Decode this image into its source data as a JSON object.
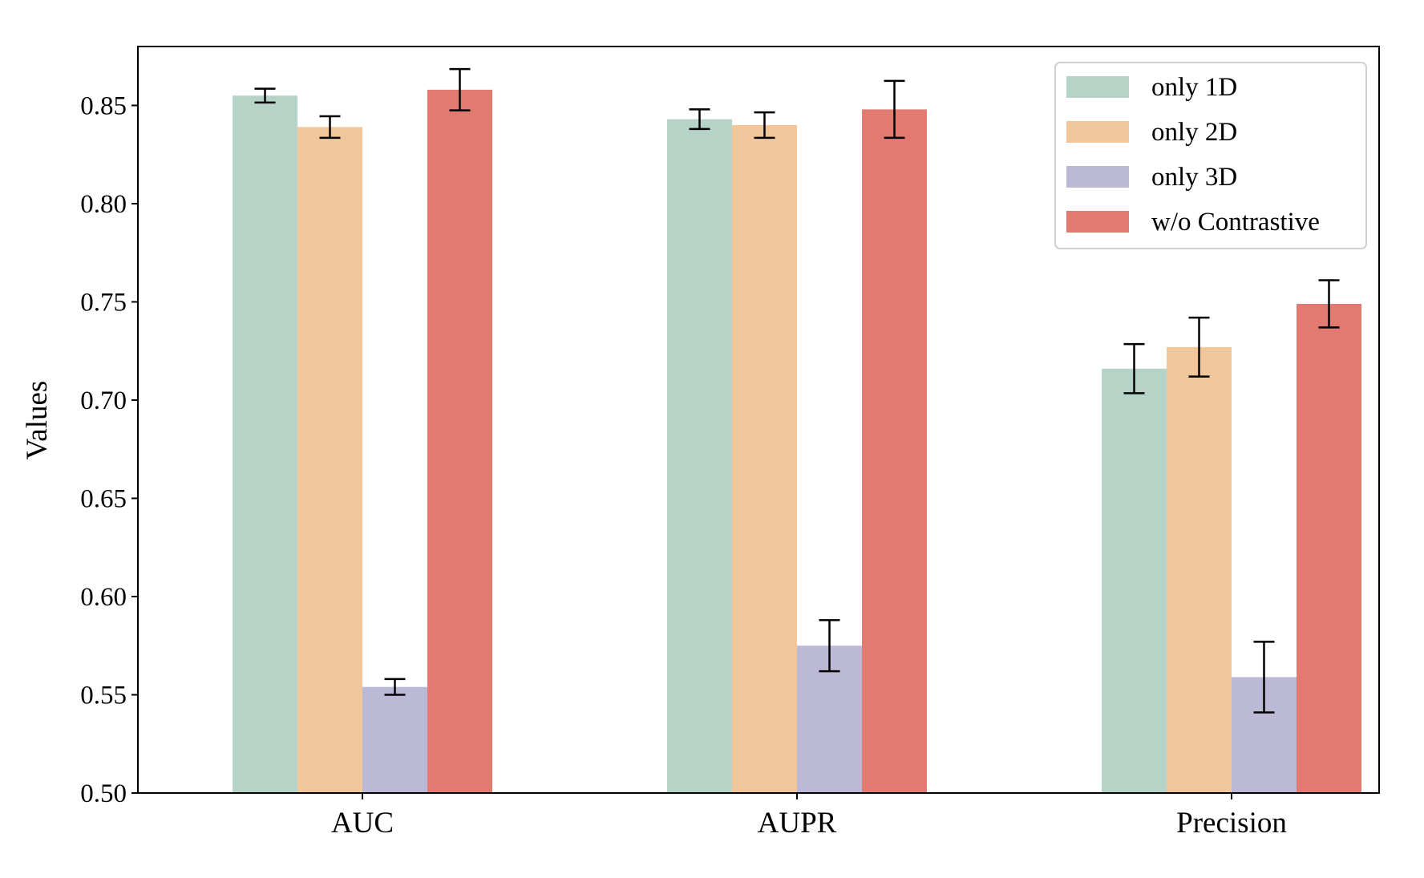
{
  "chart_data": {
    "type": "bar",
    "title": "",
    "xlabel": "",
    "ylabel": "Values",
    "ylim": [
      0.5,
      0.88
    ],
    "yticks": [
      0.5,
      0.55,
      0.6,
      0.65,
      0.7,
      0.75,
      0.8,
      0.85
    ],
    "categories": [
      "AUC",
      "AUPR",
      "Precision"
    ],
    "grid": false,
    "legend_position": "top-right",
    "series": [
      {
        "name": "only 1D",
        "color": "#b5d3c7",
        "values": [
          0.855,
          0.843,
          0.716
        ],
        "errors": [
          0.0035,
          0.005,
          0.0125
        ]
      },
      {
        "name": "only 2D",
        "color": "#f2c69b",
        "values": [
          0.839,
          0.84,
          0.727
        ],
        "errors": [
          0.0055,
          0.0065,
          0.015
        ]
      },
      {
        "name": "only 3D",
        "color": "#bbb9d6",
        "values": [
          0.554,
          0.575,
          0.559
        ],
        "errors": [
          0.004,
          0.013,
          0.018
        ]
      },
      {
        "name": "w/o Contrastive",
        "color": "#e27a72",
        "values": [
          0.858,
          0.848,
          0.749
        ],
        "errors": [
          0.0105,
          0.0145,
          0.012
        ]
      }
    ]
  }
}
